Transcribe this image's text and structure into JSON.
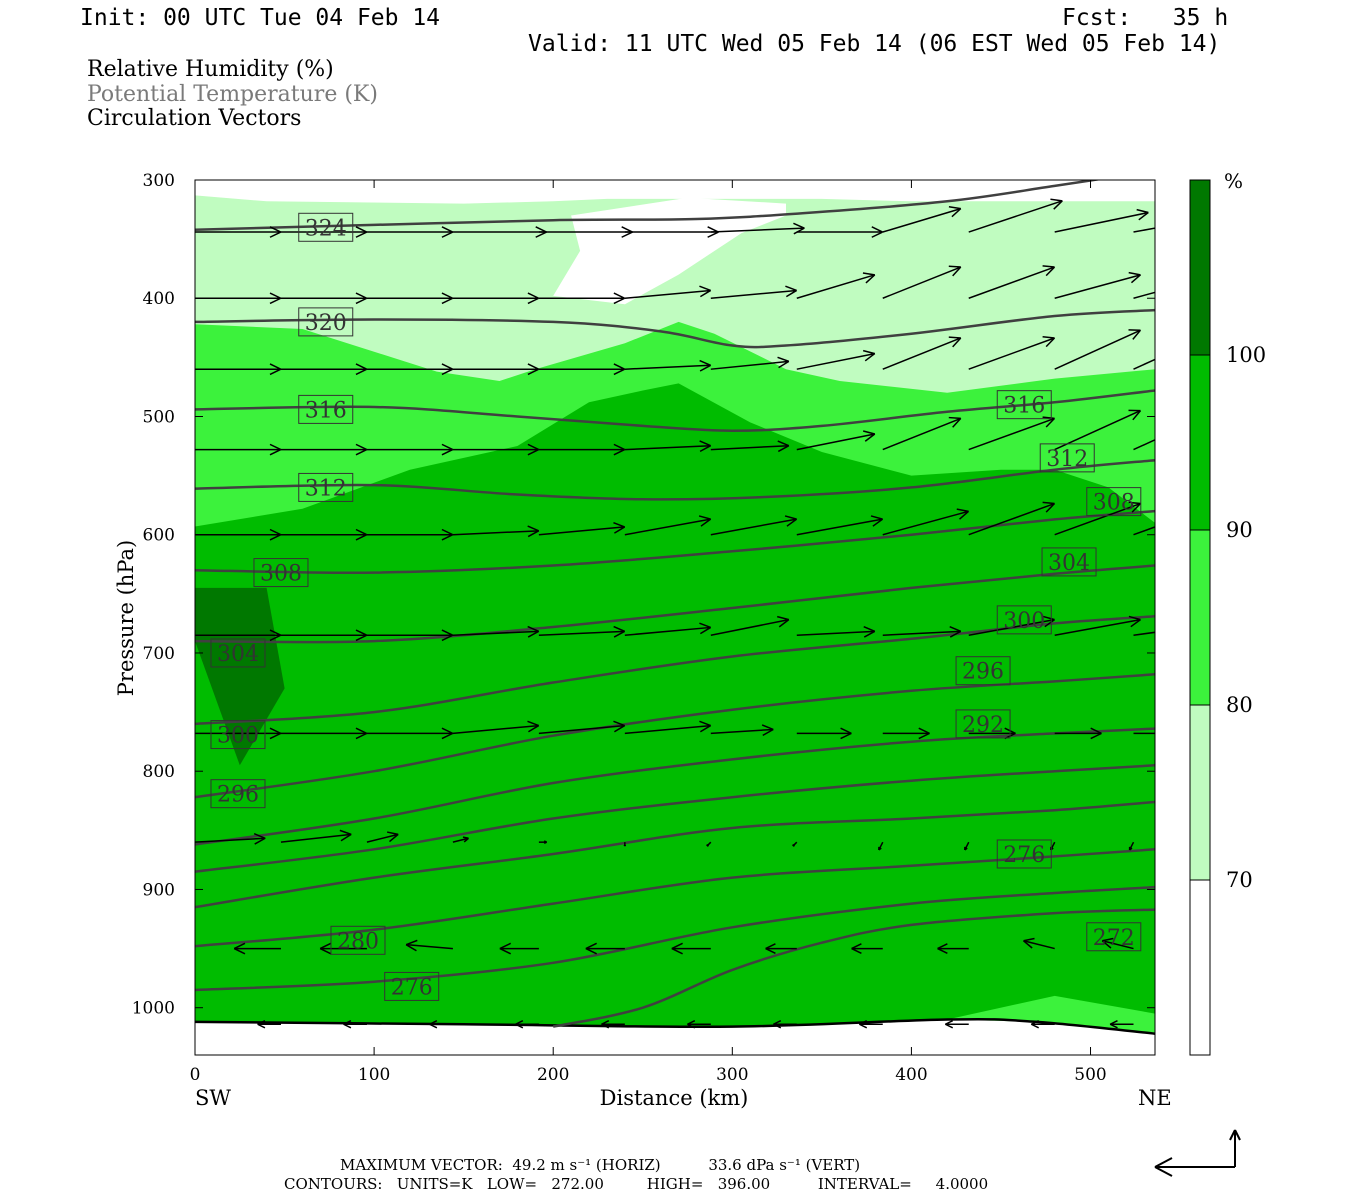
{
  "header": {
    "init": "Init: 00 UTC Tue 04 Feb 14",
    "fcst": "Fcst:   35 h",
    "valid": "Valid: 11 UTC Wed 05 Feb 14 (06 EST Wed 05 Feb 14)"
  },
  "legend_text": {
    "rh": "Relative Humidity (%)",
    "theta": "Potential Temperature (K)",
    "vectors": "Circulation Vectors"
  },
  "footer": {
    "max_vector": "MAXIMUM VECTOR:  49.2 m s⁻¹ (HORIZ)          33.6 dPa s⁻¹ (VERT)",
    "contours": "CONTOURS:   UNITS=K   LOW=   272.00         HIGH=   396.00          INTERVAL=     4.0000"
  },
  "colors": {
    "rh_70_80": "#c0fcc0",
    "rh_80_90": "#3cf23c",
    "rh_90_100": "#00bc00",
    "rh_100": "#007800",
    "theta_line": "#404040",
    "vector": "#000000"
  },
  "chart_data": {
    "type": "contour_cross_section",
    "xlabel": "Distance (km)",
    "ylabel": "Pressure (hPa)",
    "x_left_label": "SW",
    "x_right_label": "NE",
    "xlim": [
      0,
      536
    ],
    "ylim": [
      1040,
      300
    ],
    "xticks": [
      0,
      100,
      200,
      300,
      400,
      500
    ],
    "yticks": [
      300,
      400,
      500,
      600,
      700,
      800,
      900,
      1000
    ],
    "colorbar": {
      "unit": "%",
      "levels": [
        70,
        80,
        90,
        100
      ],
      "labels": [
        "70",
        "80",
        "90",
        "100"
      ]
    },
    "rh_bands": [
      {
        "min": 70,
        "max": 80,
        "points": [
          [
            0,
            313
          ],
          [
            40,
            318
          ],
          [
            150,
            320
          ],
          [
            200,
            318
          ],
          [
            230,
            316
          ],
          [
            310,
            316
          ],
          [
            350,
            316
          ],
          [
            400,
            318
          ],
          [
            450,
            318
          ],
          [
            500,
            318
          ],
          [
            536,
            318
          ],
          [
            536,
            1040
          ],
          [
            0,
            1040
          ]
        ]
      },
      {
        "min": 80,
        "max": 90,
        "points": [
          [
            0,
            422
          ],
          [
            60,
            426
          ],
          [
            110,
            450
          ],
          [
            135,
            462
          ],
          [
            170,
            470
          ],
          [
            190,
            460
          ],
          [
            240,
            438
          ],
          [
            270,
            420
          ],
          [
            290,
            430
          ],
          [
            330,
            460
          ],
          [
            360,
            470
          ],
          [
            420,
            480
          ],
          [
            480,
            468
          ],
          [
            536,
            460
          ],
          [
            536,
            1040
          ],
          [
            0,
            1040
          ]
        ]
      },
      {
        "min": 90,
        "max": 100,
        "points": [
          [
            0,
            593
          ],
          [
            60,
            578
          ],
          [
            120,
            545
          ],
          [
            180,
            525
          ],
          [
            220,
            488
          ],
          [
            250,
            478
          ],
          [
            270,
            472
          ],
          [
            310,
            505
          ],
          [
            350,
            530
          ],
          [
            400,
            550
          ],
          [
            450,
            545
          ],
          [
            480,
            545
          ],
          [
            510,
            560
          ],
          [
            536,
            590
          ],
          [
            536,
            1005
          ],
          [
            480,
            990
          ],
          [
            420,
            1010
          ],
          [
            300,
            1020
          ],
          [
            200,
            1020
          ],
          [
            0,
            1020
          ]
        ]
      },
      {
        "min": 100,
        "max": 110,
        "points": [
          [
            0,
            645
          ],
          [
            40,
            645
          ],
          [
            50,
            730
          ],
          [
            25,
            795
          ],
          [
            0,
            690
          ]
        ]
      }
    ],
    "white_gap": {
      "points": [
        [
          210,
          330
        ],
        [
          275,
          315
        ],
        [
          330,
          320
        ],
        [
          330,
          330
        ],
        [
          305,
          345
        ],
        [
          270,
          380
        ],
        [
          240,
          405
        ],
        [
          200,
          398
        ],
        [
          215,
          360
        ]
      ]
    },
    "surface_line": [
      [
        0,
        1012
      ],
      [
        150,
        1014
      ],
      [
        300,
        1016
      ],
      [
        420,
        1010
      ],
      [
        470,
        1012
      ],
      [
        536,
        1022
      ]
    ],
    "theta_contours": [
      {
        "value": 324,
        "label": "324",
        "label_at": [
          73,
          340
        ],
        "points": [
          [
            0,
            342
          ],
          [
            100,
            338
          ],
          [
            200,
            334
          ],
          [
            280,
            333
          ],
          [
            340,
            328
          ],
          [
            420,
            318
          ],
          [
            480,
            305
          ],
          [
            536,
            292
          ]
        ]
      },
      {
        "value": 320,
        "label": "320",
        "label_at": [
          73,
          420
        ],
        "points": [
          [
            0,
            420
          ],
          [
            100,
            418
          ],
          [
            200,
            420
          ],
          [
            260,
            428
          ],
          [
            300,
            440
          ],
          [
            330,
            440
          ],
          [
            400,
            430
          ],
          [
            480,
            415
          ],
          [
            536,
            410
          ]
        ]
      },
      {
        "value": 316,
        "label": "316",
        "label_at": [
          73,
          494
        ],
        "label2": "316",
        "label2_at": [
          463,
          490
        ],
        "points": [
          [
            0,
            494
          ],
          [
            100,
            492
          ],
          [
            180,
            500
          ],
          [
            250,
            508
          ],
          [
            300,
            512
          ],
          [
            350,
            508
          ],
          [
            420,
            496
          ],
          [
            480,
            488
          ],
          [
            536,
            478
          ]
        ]
      },
      {
        "value": 312,
        "label": "312",
        "label_at": [
          73,
          560
        ],
        "label2": "312",
        "label2_at": [
          487,
          535
        ],
        "points": [
          [
            0,
            561
          ],
          [
            100,
            558
          ],
          [
            180,
            566
          ],
          [
            250,
            570
          ],
          [
            320,
            568
          ],
          [
            400,
            560
          ],
          [
            480,
            545
          ],
          [
            536,
            537
          ]
        ]
      },
      {
        "value": 308,
        "label": "308",
        "label_at": [
          48,
          632
        ],
        "label2": "308",
        "label2_at": [
          513,
          572
        ],
        "points": [
          [
            0,
            630
          ],
          [
            100,
            632
          ],
          [
            200,
            626
          ],
          [
            300,
            614
          ],
          [
            400,
            600
          ],
          [
            480,
            587
          ],
          [
            536,
            580
          ]
        ]
      },
      {
        "value": 304,
        "label": "304",
        "label_at": [
          24,
          700
        ],
        "label2": "304",
        "label2_at": [
          488,
          623
        ],
        "points": [
          [
            0,
            690
          ],
          [
            100,
            690
          ],
          [
            200,
            678
          ],
          [
            300,
            662
          ],
          [
            400,
            645
          ],
          [
            480,
            633
          ],
          [
            536,
            626
          ]
        ]
      },
      {
        "value": 300,
        "label": "300",
        "label_at": [
          24,
          769
        ],
        "label2": "300",
        "label2_at": [
          463,
          672
        ],
        "points": [
          [
            0,
            760
          ],
          [
            100,
            750
          ],
          [
            200,
            725
          ],
          [
            300,
            703
          ],
          [
            400,
            688
          ],
          [
            480,
            675
          ],
          [
            536,
            669
          ]
        ]
      },
      {
        "value": 296,
        "label": "296",
        "label_at": [
          24,
          819
        ],
        "label2": "296",
        "label2_at": [
          440,
          715
        ],
        "points": [
          [
            0,
            822
          ],
          [
            100,
            800
          ],
          [
            200,
            770
          ],
          [
            300,
            748
          ],
          [
            400,
            732
          ],
          [
            480,
            724
          ],
          [
            536,
            718
          ]
        ]
      },
      {
        "value": 292,
        "label": "292",
        "label_at": [
          440,
          760
        ],
        "points": [
          [
            0,
            862
          ],
          [
            100,
            840
          ],
          [
            200,
            810
          ],
          [
            300,
            790
          ],
          [
            400,
            775
          ],
          [
            480,
            768
          ],
          [
            536,
            764
          ]
        ]
      },
      {
        "value": 288,
        "label": "",
        "points": [
          [
            0,
            885
          ],
          [
            100,
            866
          ],
          [
            200,
            840
          ],
          [
            300,
            822
          ],
          [
            400,
            808
          ],
          [
            480,
            800
          ],
          [
            536,
            795
          ]
        ]
      },
      {
        "value": 284,
        "label": "",
        "points": [
          [
            0,
            915
          ],
          [
            100,
            890
          ],
          [
            200,
            870
          ],
          [
            300,
            848
          ],
          [
            400,
            840
          ],
          [
            480,
            833
          ],
          [
            536,
            826
          ]
        ]
      },
      {
        "value": 280,
        "label": "280",
        "label_at": [
          91,
          943
        ],
        "points": [
          [
            0,
            948
          ],
          [
            100,
            934
          ],
          [
            200,
            912
          ],
          [
            300,
            890
          ],
          [
            400,
            880
          ],
          [
            480,
            872
          ],
          [
            536,
            866
          ]
        ]
      },
      {
        "value": 276,
        "label": "276",
        "label_at": [
          121,
          982
        ],
        "label2": "276",
        "label2_at": [
          463,
          870
        ],
        "points": [
          [
            0,
            985
          ],
          [
            100,
            978
          ],
          [
            200,
            962
          ],
          [
            300,
            932
          ],
          [
            400,
            912
          ],
          [
            480,
            903
          ],
          [
            536,
            898
          ]
        ]
      },
      {
        "value": 272,
        "label": "272",
        "label_at": [
          513,
          940
        ],
        "points": [
          [
            200,
            1016
          ],
          [
            250,
            1000
          ],
          [
            300,
            968
          ],
          [
            350,
            945
          ],
          [
            400,
            930
          ],
          [
            480,
            920
          ],
          [
            536,
            917
          ]
        ]
      }
    ],
    "vectors": [
      {
        "p": 344,
        "u": [
          22,
          22,
          22,
          24,
          24,
          24,
          24,
          22,
          20,
          24,
          24,
          22,
          22,
          22
        ],
        "v": [
          0,
          0,
          0,
          0,
          0,
          0,
          -1,
          0,
          -6,
          -8,
          -5,
          -4,
          -4,
          -4
        ]
      },
      {
        "p": 400,
        "u": [
          22,
          22,
          22,
          22,
          22,
          22,
          22,
          20,
          20,
          22,
          22,
          22,
          22,
          22
        ],
        "v": [
          0,
          0,
          0,
          0,
          0,
          -2,
          -2,
          -6,
          -8,
          -8,
          -6,
          -6,
          -6,
          -6
        ]
      },
      {
        "p": 460,
        "u": [
          22,
          22,
          22,
          22,
          22,
          22,
          20,
          20,
          20,
          22,
          22,
          22,
          22,
          22
        ],
        "v": [
          0,
          0,
          0,
          0,
          0,
          -1,
          -2,
          -4,
          -8,
          -8,
          -10,
          -10,
          -10,
          -10
        ]
      },
      {
        "p": 528,
        "u": [
          22,
          22,
          22,
          22,
          22,
          22,
          20,
          20,
          20,
          22,
          22,
          22,
          22,
          22
        ],
        "v": [
          0,
          0,
          0,
          0,
          0,
          -1,
          -1,
          -4,
          -8,
          -8,
          -10,
          -10,
          -10,
          -10
        ]
      },
      {
        "p": 600,
        "u": [
          22,
          22,
          22,
          22,
          22,
          22,
          22,
          22,
          22,
          22,
          22,
          22,
          22,
          22
        ],
        "v": [
          0,
          0,
          0,
          -1,
          -2,
          -4,
          -4,
          -4,
          -6,
          -8,
          -8,
          -8,
          -8,
          -8
        ]
      },
      {
        "p": 685,
        "u": [
          22,
          22,
          22,
          22,
          22,
          22,
          20,
          20,
          20,
          22,
          22,
          22,
          22,
          22
        ],
        "v": [
          0,
          0,
          0,
          -1,
          -1,
          -2,
          -4,
          -1,
          -1,
          -4,
          -4,
          -3,
          -2,
          0
        ]
      },
      {
        "p": 768,
        "u": [
          22,
          22,
          22,
          22,
          22,
          22,
          16,
          14,
          12,
          12,
          12,
          8,
          6,
          6
        ],
        "v": [
          0,
          0,
          0,
          -2,
          -2,
          -2,
          -1,
          0,
          0,
          0,
          0,
          0,
          2,
          2
        ]
      },
      {
        "p": 860,
        "u": [
          18,
          18,
          8,
          4,
          2,
          0,
          -1,
          -1,
          -1,
          -1,
          -1,
          -1,
          -1,
          -1
        ],
        "v": [
          -1,
          -2,
          -2,
          -1,
          0,
          1,
          1,
          1,
          2,
          2,
          2,
          2,
          2,
          2
        ]
      },
      {
        "p": 950,
        "u": [
          -12,
          -12,
          -12,
          -12,
          -10,
          -10,
          -10,
          -8,
          -8,
          -8,
          -8,
          -8,
          -6,
          -4
        ],
        "v": [
          0,
          0,
          0,
          -1,
          0,
          0,
          0,
          0,
          0,
          0,
          -2,
          -2,
          -1,
          0
        ]
      },
      {
        "p": 1014,
        "u": [
          -6,
          -6,
          -6,
          -6,
          -6,
          -6,
          -6,
          -6,
          -6,
          -6,
          -6,
          -6,
          -6,
          -6
        ],
        "v": [
          0,
          0,
          0,
          0,
          0,
          0,
          0,
          0,
          0,
          0,
          0,
          0,
          0,
          0
        ]
      }
    ],
    "vector_x": [
      0,
      48,
      96,
      144,
      192,
      240,
      288,
      336,
      384,
      432,
      480,
      524,
      536,
      536
    ]
  }
}
